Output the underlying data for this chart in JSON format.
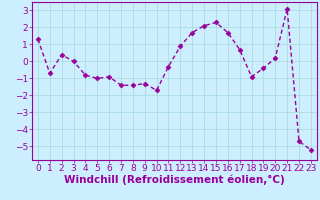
{
  "x": [
    0,
    1,
    2,
    3,
    4,
    5,
    6,
    7,
    8,
    9,
    10,
    11,
    12,
    13,
    14,
    15,
    16,
    17,
    18,
    19,
    20,
    21,
    22,
    23
  ],
  "y": [
    1.3,
    -0.7,
    0.4,
    0.0,
    -0.8,
    -1.0,
    -0.9,
    -1.4,
    -1.4,
    -1.3,
    -1.7,
    -0.3,
    0.9,
    1.7,
    2.1,
    2.3,
    1.7,
    0.7,
    -0.9,
    -0.4,
    0.2,
    3.1,
    -4.7,
    -5.2
  ],
  "line_color": "#990099",
  "marker": "D",
  "marker_size": 2.5,
  "bg_color": "#cceeff",
  "grid_color": "#aadddd",
  "xlabel": "Windchill (Refroidissement éolien,°C)",
  "xlabel_color": "#990099",
  "tick_color": "#990099",
  "spine_color": "#990099",
  "ylim": [
    -5.8,
    3.5
  ],
  "yticks": [
    -5,
    -4,
    -3,
    -2,
    -1,
    0,
    1,
    2,
    3
  ],
  "xlim": [
    -0.5,
    23.5
  ],
  "xticks": [
    0,
    1,
    2,
    3,
    4,
    5,
    6,
    7,
    8,
    9,
    10,
    11,
    12,
    13,
    14,
    15,
    16,
    17,
    18,
    19,
    20,
    21,
    22,
    23
  ],
  "tick_fontsize": 6.5,
  "xlabel_fontsize": 7.5,
  "linewidth": 1.0
}
